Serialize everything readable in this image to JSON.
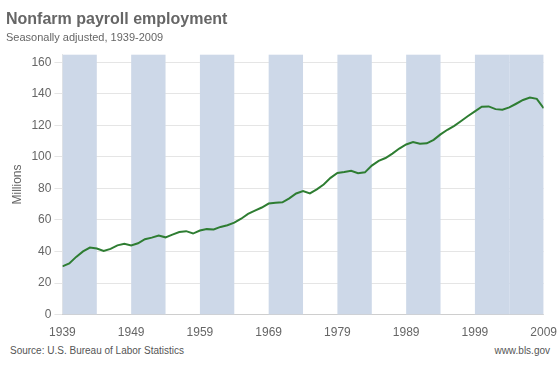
{
  "chart_data": {
    "type": "line",
    "title": "Nonfarm payroll employment",
    "subtitle": "Seasonally adjusted, 1939-2009",
    "ylabel": "Millions",
    "annotations": [
      "Source: U.S. Bureau of Labor Statistics",
      "www.bls.gov"
    ],
    "color": "#2e7d32",
    "shade_color": "#cdd8e8",
    "shade_bands": [
      [
        1939,
        1944
      ],
      [
        1949,
        1954
      ],
      [
        1959,
        1964
      ],
      [
        1969,
        1974
      ],
      [
        1979,
        1984
      ],
      [
        1989,
        1994
      ],
      [
        1999,
        2004
      ],
      [
        2004,
        2009
      ]
    ],
    "x": [
      1939,
      1940,
      1941,
      1942,
      1943,
      1944,
      1945,
      1946,
      1947,
      1948,
      1949,
      1950,
      1951,
      1952,
      1953,
      1954,
      1955,
      1956,
      1957,
      1958,
      1959,
      1960,
      1961,
      1962,
      1963,
      1964,
      1965,
      1966,
      1967,
      1968,
      1969,
      1970,
      1971,
      1972,
      1973,
      1974,
      1975,
      1976,
      1977,
      1978,
      1979,
      1980,
      1981,
      1982,
      1983,
      1984,
      1985,
      1986,
      1987,
      1988,
      1989,
      1990,
      1991,
      1992,
      1993,
      1994,
      1995,
      1996,
      1997,
      1998,
      1999,
      2000,
      2001,
      2002,
      2003,
      2004,
      2005,
      2006,
      2007,
      2008,
      2009
    ],
    "values": [
      30.6,
      32.4,
      36.6,
      40.1,
      42.5,
      41.9,
      40.4,
      41.7,
      43.9,
      44.9,
      43.8,
      45.2,
      47.8,
      48.8,
      50.2,
      49.0,
      50.7,
      52.4,
      52.9,
      51.4,
      53.3,
      54.2,
      54.0,
      55.6,
      56.7,
      58.3,
      60.8,
      63.9,
      65.9,
      67.9,
      70.4,
      70.9,
      71.2,
      73.7,
      76.8,
      78.3,
      76.9,
      79.4,
      82.5,
      86.7,
      89.8,
      90.4,
      91.2,
      89.6,
      90.2,
      94.5,
      97.5,
      99.3,
      102.1,
      105.3,
      107.9,
      109.4,
      108.3,
      108.6,
      110.8,
      114.3,
      117.2,
      119.7,
      122.8,
      125.9,
      128.9,
      131.8,
      132.0,
      130.3,
      129.9,
      131.4,
      133.7,
      136.1,
      137.6,
      136.8,
      130.9
    ],
    "xlim": [
      1939,
      2009
    ],
    "xticks": [
      1939,
      1949,
      1959,
      1969,
      1979,
      1989,
      1999,
      2009
    ],
    "ylim": [
      0,
      165
    ],
    "yticks": [
      0,
      20,
      40,
      60,
      80,
      100,
      120,
      140,
      160
    ],
    "grid": true
  }
}
